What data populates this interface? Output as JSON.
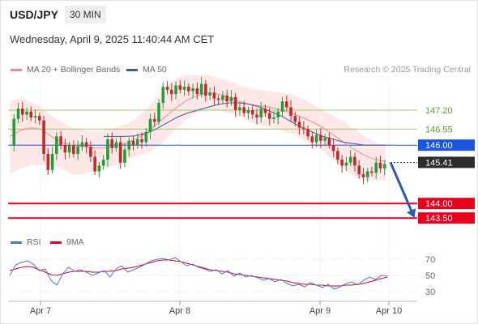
{
  "header": {
    "symbol": "USD/JPY",
    "timeframe": "30 MIN",
    "datetime": "Wednesday, April 9, 2025 11:40:44 AM CET"
  },
  "legend": {
    "ma20_label": "MA 20 + Bollinger Bands",
    "ma50_label": "MA 50",
    "source": "Research © 2025 Trading Central",
    "rsi_label": "RSI",
    "rsi_ma_label": "9MA"
  },
  "colors": {
    "ma20": "#f08a8a",
    "ma50": "#3b5ea8",
    "band_fill": "#fde3e3",
    "resistance": "#9acd6a",
    "pivot": "#1a55e0",
    "support": "#e8001c",
    "current": "#2d2d2d",
    "bull": "#1f9e3a",
    "bear": "#c22a2a",
    "arrow": "#2a5aa8",
    "rsi": "#4a78d8",
    "rsi_ma": "#e8001c"
  },
  "chart_data": [
    {
      "type": "candlestick",
      "title": "USD/JPY",
      "timeframe": "30 MIN",
      "x_tick_labels": [
        "Apr 7",
        "Apr 8",
        "Apr 9",
        "Apr 10"
      ],
      "ylim": [
        143.2,
        148.2
      ],
      "levels": [
        {
          "value": 147.2,
          "label": "147.20",
          "role": "resistance"
        },
        {
          "value": 146.55,
          "label": "146.55",
          "role": "resistance"
        },
        {
          "value": 146.0,
          "label": "146.00",
          "role": "pivot"
        },
        {
          "value": 145.41,
          "label": "145.41",
          "role": "current"
        },
        {
          "value": 144.0,
          "label": "144.00",
          "role": "support"
        },
        {
          "value": 143.5,
          "label": "143.50",
          "role": "support"
        }
      ],
      "projection": {
        "from": 145.41,
        "to": 143.5
      },
      "price_path": [
        146.0,
        146.9,
        147.25,
        147.05,
        147.15,
        146.95,
        147.0,
        146.85,
        145.7,
        145.15,
        145.7,
        146.3,
        146.0,
        145.75,
        146.0,
        145.7,
        145.95,
        146.1,
        145.95,
        145.6,
        145.1,
        145.3,
        145.5,
        146.2,
        145.9,
        146.1,
        145.4,
        145.85,
        146.15,
        146.0,
        146.2,
        146.1,
        146.45,
        146.9,
        146.8,
        147.45,
        148.0,
        147.9,
        147.75,
        148.05,
        147.9,
        148.0,
        147.85,
        147.95,
        147.75,
        148.1,
        147.7,
        147.8,
        147.6,
        147.55,
        147.7,
        147.5,
        147.65,
        147.2,
        147.3,
        147.1,
        147.2,
        147.05,
        146.95,
        147.25,
        147.1,
        146.9,
        146.95,
        147.15,
        147.5,
        147.3,
        147.0,
        146.8,
        146.6,
        146.55,
        146.3,
        146.1,
        146.35,
        146.15,
        146.25,
        146.0,
        145.8,
        145.5,
        145.3,
        145.4,
        145.6,
        145.3,
        145.0,
        144.9,
        145.1,
        145.05,
        145.4,
        145.2,
        145.35
      ],
      "ma20": [
        146.3,
        146.5,
        146.6,
        146.55,
        146.3,
        146.1,
        146.0,
        145.95,
        145.9,
        145.9,
        145.95,
        146.05,
        146.2,
        146.4,
        146.7,
        147.0,
        147.3,
        147.55,
        147.7,
        147.8,
        147.75,
        147.65,
        147.5,
        147.4,
        147.35,
        147.3,
        147.2,
        147.1,
        146.95,
        146.8,
        146.6,
        146.35,
        146.1,
        145.85,
        145.65,
        145.5,
        145.45
      ],
      "ma50": [
        null,
        null,
        null,
        null,
        null,
        null,
        null,
        null,
        null,
        146.3,
        146.3,
        146.3,
        146.32,
        146.4,
        146.55,
        146.75,
        146.95,
        147.1,
        147.2,
        147.3,
        147.4,
        147.45,
        147.45,
        147.4,
        147.3,
        147.15,
        147.0,
        146.8,
        146.6,
        146.45,
        146.3,
        146.2,
        146.1,
        146.05,
        146.0,
        146.0,
        146.0
      ],
      "bb_upper": [
        147.5,
        147.6,
        147.5,
        147.3,
        147.0,
        146.8,
        146.6,
        146.5,
        146.5,
        146.5,
        146.6,
        146.7,
        146.9,
        147.2,
        147.6,
        148.0,
        148.3,
        148.4,
        148.4,
        148.4,
        148.3,
        148.2,
        148.05,
        147.95,
        147.9,
        147.85,
        147.8,
        147.75,
        147.6,
        147.4,
        147.2,
        147.0,
        146.8,
        146.55,
        146.3,
        146.1,
        146.0
      ],
      "bb_lower": [
        145.0,
        145.2,
        145.3,
        145.3,
        145.3,
        145.2,
        145.0,
        145.0,
        145.1,
        145.2,
        145.3,
        145.4,
        145.6,
        145.7,
        145.9,
        146.2,
        146.6,
        146.9,
        147.1,
        147.2,
        147.2,
        147.1,
        147.0,
        146.8,
        146.7,
        146.6,
        146.5,
        146.4,
        146.2,
        146.0,
        145.8,
        145.5,
        145.2,
        144.9,
        144.8,
        144.8,
        144.8
      ]
    },
    {
      "type": "line",
      "title": "RSI",
      "series_names": [
        "RSI",
        "9MA"
      ],
      "y_tick_labels": [
        "70",
        "50",
        "30"
      ],
      "y_ticks": [
        70,
        50,
        30
      ],
      "ylim": [
        22,
        78
      ],
      "rsi": [
        50,
        63,
        66,
        68,
        64,
        56,
        58,
        44,
        38,
        52,
        60,
        55,
        57,
        54,
        50,
        53,
        56,
        48,
        58,
        62,
        54,
        57,
        60,
        64,
        68,
        70,
        71,
        69,
        72,
        67,
        62,
        64,
        60,
        58,
        55,
        57,
        52,
        56,
        49,
        53,
        48,
        50,
        47,
        44,
        46,
        42,
        45,
        40,
        37,
        39,
        36,
        41,
        38,
        35,
        39,
        33,
        36,
        40,
        42,
        38,
        44,
        48,
        45,
        50,
        49
      ],
      "rsi_ma": [
        56,
        58,
        60,
        61,
        60,
        57,
        54,
        51,
        50,
        52,
        54,
        55,
        55,
        55,
        54,
        54,
        55,
        55,
        56,
        58,
        59,
        60,
        62,
        64,
        66,
        68,
        69,
        69,
        68,
        67,
        65,
        63,
        61,
        59,
        57,
        56,
        55,
        54,
        52,
        51,
        50,
        49,
        48,
        47,
        46,
        45,
        44,
        43,
        41,
        40,
        39,
        39,
        38,
        38,
        37,
        37,
        37,
        38,
        38,
        39,
        40,
        42,
        44,
        46,
        48
      ]
    }
  ]
}
